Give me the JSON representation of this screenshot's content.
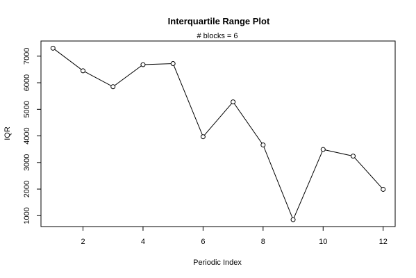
{
  "chart_data": {
    "type": "line",
    "title": "Interquartile Range Plot",
    "subtitle": "# blocks =  6",
    "xlabel": "Periodic Index",
    "ylabel": "IQR",
    "x": [
      1,
      2,
      3,
      4,
      5,
      6,
      7,
      8,
      9,
      10,
      11,
      12
    ],
    "series": [
      {
        "values": [
          7300,
          6450,
          5850,
          6680,
          6720,
          3970,
          5280,
          3660,
          850,
          3490,
          3240,
          1990
        ]
      }
    ],
    "xlim": [
      0.6,
      12.4
    ],
    "ylim": [
      590,
      7570
    ],
    "xticks": [
      2,
      4,
      6,
      8,
      10,
      12
    ],
    "yticks": [
      1000,
      2000,
      3000,
      4000,
      5000,
      6000,
      7000
    ],
    "marker": "open-circle",
    "grid": false,
    "legend": "none"
  }
}
